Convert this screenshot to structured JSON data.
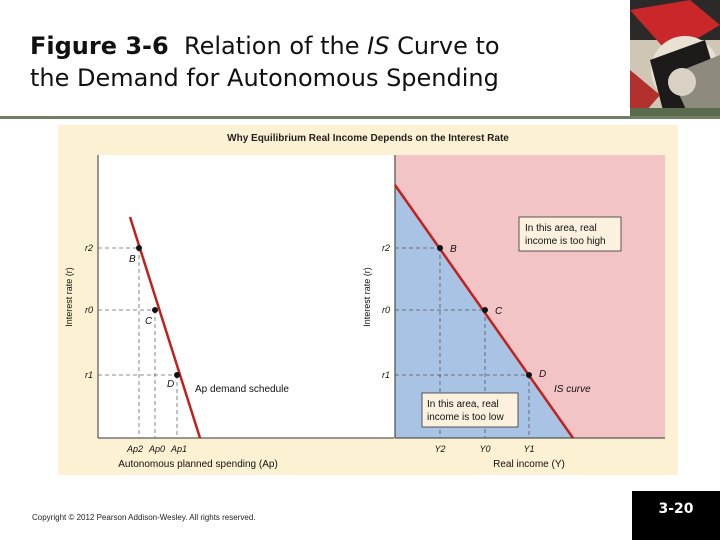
{
  "slide": {
    "title_num": "Figure 3-6",
    "title_rest_1": "Relation of the",
    "title_is": "IS",
    "title_rest_2": "Curve to",
    "title_line2": "the Demand for Autonomous Spending",
    "page_number": "3-20",
    "copyright": "Copyright © 2012 Pearson Addison-Wesley. All rights reserved."
  },
  "figure": {
    "heading": "Why Equilibrium Real Income Depends on the Interest Rate",
    "colors": {
      "frame": "#fdf1d4",
      "blue": "#a9c3e4",
      "pink": "#f3c4c6",
      "curve": "#c0211d",
      "note_box": "#fbf1de"
    },
    "left_panel": {
      "ylabel": "Interest rate (r)",
      "xlabel": "Autonomous planned spending (Ap)",
      "y_ticks": [
        "r2",
        "r0",
        "r1"
      ],
      "x_ticks": [
        "Ap2",
        "Ap0",
        "Ap1"
      ],
      "points": [
        "B",
        "C",
        "D"
      ],
      "curve_label": "Ap demand schedule"
    },
    "right_panel": {
      "ylabel": "Interest rate (r)",
      "xlabel": "Real income (Y)",
      "y_ticks": [
        "r2",
        "r0",
        "r1"
      ],
      "x_ticks": [
        "Y2",
        "Y0",
        "Y1"
      ],
      "points": [
        "B",
        "C",
        "D"
      ],
      "curve_label": "IS curve",
      "note_high": [
        "In this area, real",
        "income is too high"
      ],
      "note_low": [
        "In this area, real",
        "income is too low"
      ]
    }
  }
}
